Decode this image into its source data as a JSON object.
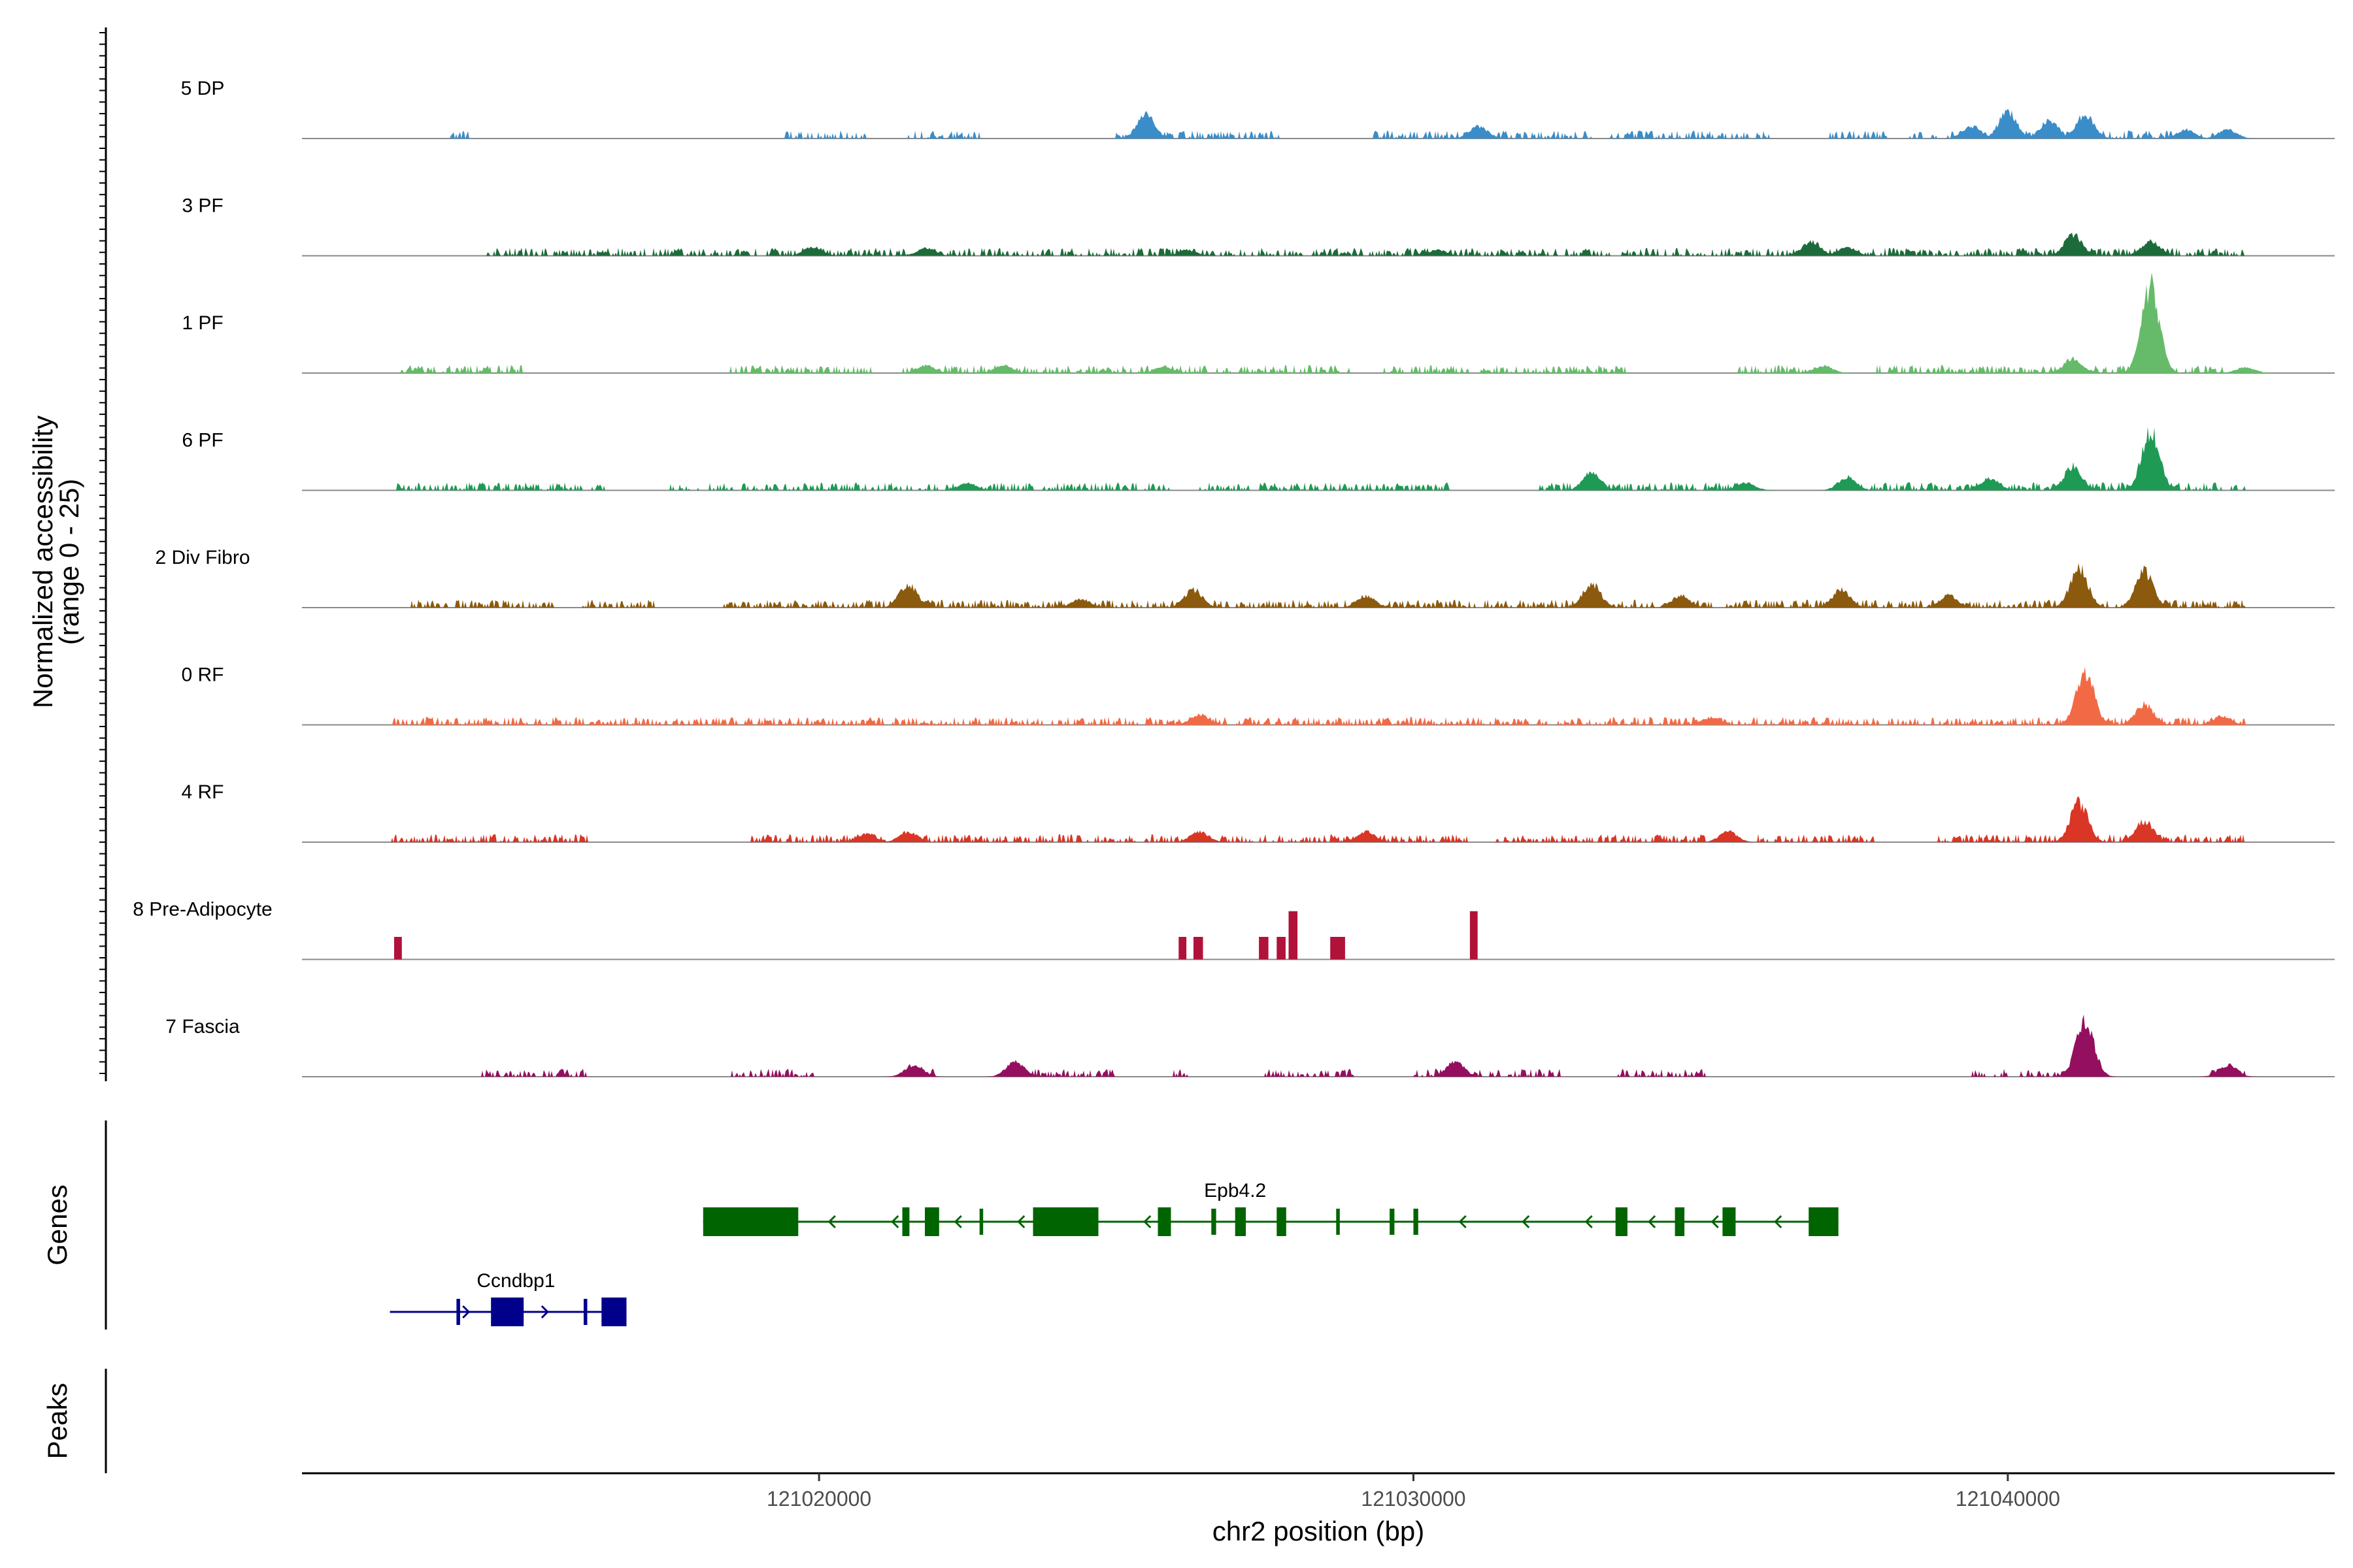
{
  "chart_data": {
    "type": "area",
    "title": "",
    "xlabel": "chr2 position (bp)",
    "ylabel": "Normalized accessibility\n(range 0 - 25)",
    "ylabel_lines": [
      "Normalized accessibility",
      "(range 0 - 25)"
    ],
    "xlim": [
      121011300,
      121045500
    ],
    "ylim": [
      0,
      25
    ],
    "x_ticks": [
      121020000,
      121030000,
      121040000
    ],
    "x_tick_labels": [
      "121020000",
      "121030000",
      "121040000"
    ],
    "tracks": [
      {
        "name": "5 DP",
        "color": "#3a8dc8",
        "segments": [
          [
            121013800,
            121014200
          ],
          [
            121019400,
            121020800
          ],
          [
            121021500,
            121022700
          ],
          [
            121025000,
            121027800
          ],
          [
            121029300,
            121033000
          ],
          [
            121033300,
            121036000
          ],
          [
            121037000,
            121038000
          ],
          [
            121038300,
            121044000
          ]
        ],
        "peaks": [
          [
            121025500,
            16
          ],
          [
            121031100,
            8
          ],
          [
            121039400,
            8
          ],
          [
            121040000,
            18
          ],
          [
            121040700,
            12
          ],
          [
            121041300,
            16
          ],
          [
            121043000,
            6
          ],
          [
            121043700,
            6
          ]
        ]
      },
      {
        "name": "3 PF",
        "color": "#1d6b3a",
        "segments": [
          [
            121014400,
            121044000
          ]
        ],
        "peaks": [
          [
            121019900,
            6
          ],
          [
            121021800,
            5
          ],
          [
            121026200,
            4
          ],
          [
            121030400,
            4
          ],
          [
            121036700,
            10
          ],
          [
            121037300,
            6
          ],
          [
            121041100,
            14
          ],
          [
            121042400,
            10
          ]
        ]
      },
      {
        "name": "1 PF",
        "color": "#66bb6a",
        "segments": [
          [
            121012900,
            121015000
          ],
          [
            121018500,
            121020900
          ],
          [
            121021400,
            121029000
          ],
          [
            121029500,
            121033600
          ],
          [
            121035400,
            121036900
          ],
          [
            121037800,
            121044000
          ]
        ],
        "peaks": [
          [
            121021800,
            5
          ],
          [
            121023100,
            5
          ],
          [
            121025800,
            4
          ],
          [
            121036900,
            5
          ],
          [
            121041100,
            10
          ],
          [
            121042400,
            58
          ],
          [
            121044000,
            4
          ]
        ]
      },
      {
        "name": "6 PF",
        "color": "#1e9a54",
        "segments": [
          [
            121012900,
            121016400
          ],
          [
            121017500,
            121025900
          ],
          [
            121026400,
            121030600
          ],
          [
            121032100,
            121035600
          ],
          [
            121037300,
            121044000
          ]
        ],
        "peaks": [
          [
            121022500,
            5
          ],
          [
            121033000,
            12
          ],
          [
            121035600,
            5
          ],
          [
            121037300,
            9
          ],
          [
            121039700,
            8
          ],
          [
            121041100,
            16
          ],
          [
            121042400,
            40
          ]
        ]
      },
      {
        "name": "2 Div Fibro",
        "color": "#8b5a0f",
        "segments": [
          [
            121013100,
            121015600
          ],
          [
            121016000,
            121017300
          ],
          [
            121018400,
            121044000
          ]
        ],
        "peaks": [
          [
            121021500,
            16
          ],
          [
            121024400,
            6
          ],
          [
            121026300,
            12
          ],
          [
            121029200,
            8
          ],
          [
            121033000,
            16
          ],
          [
            121034500,
            8
          ],
          [
            121037200,
            12
          ],
          [
            121039000,
            8
          ],
          [
            121041200,
            26
          ],
          [
            121042300,
            24
          ]
        ]
      },
      {
        "name": "0 RF",
        "color": "#f26a45",
        "segments": [
          [
            121012800,
            121044000
          ]
        ],
        "peaks": [
          [
            121026400,
            7
          ],
          [
            121035000,
            5
          ],
          [
            121041300,
            36
          ],
          [
            121042300,
            14
          ],
          [
            121043600,
            6
          ]
        ]
      },
      {
        "name": "4 RF",
        "color": "#d93626",
        "segments": [
          [
            121012800,
            121016100
          ],
          [
            121018800,
            121030900
          ],
          [
            121031400,
            121034900
          ],
          [
            121035800,
            121037800
          ],
          [
            121038800,
            121044000
          ]
        ],
        "peaks": [
          [
            121020800,
            6
          ],
          [
            121021500,
            7
          ],
          [
            121026400,
            7
          ],
          [
            121029200,
            7
          ],
          [
            121035300,
            7
          ],
          [
            121041200,
            26
          ],
          [
            121042300,
            14
          ]
        ]
      },
      {
        "name": "8 Pre-Adipocyte",
        "color": "#b0123a",
        "segments": [],
        "peaks": [],
        "bars": [
          [
            121012850,
            121012980,
            14
          ],
          [
            121026050,
            121026180,
            14
          ],
          [
            121026300,
            121026460,
            14
          ],
          [
            121027400,
            121027560,
            14
          ],
          [
            121027700,
            121027850,
            14
          ],
          [
            121027900,
            121028050,
            30
          ],
          [
            121028600,
            121028850,
            14
          ],
          [
            121030950,
            121031080,
            30
          ]
        ]
      },
      {
        "name": "7 Fascia",
        "color": "#940f5f",
        "segments": [
          [
            121014300,
            121016100
          ],
          [
            121018500,
            121019900
          ],
          [
            121021500,
            121022000
          ],
          [
            121023000,
            121025000
          ],
          [
            121025900,
            121026200
          ],
          [
            121027500,
            121029000
          ],
          [
            121030000,
            121032500
          ],
          [
            121033300,
            121035000
          ],
          [
            121039400,
            121040000
          ],
          [
            121040200,
            121041500
          ],
          [
            121043400,
            121044000
          ]
        ],
        "peaks": [
          [
            121021600,
            8
          ],
          [
            121023300,
            10
          ],
          [
            121030700,
            10
          ],
          [
            121041300,
            38
          ],
          [
            121043700,
            8
          ]
        ]
      }
    ],
    "genes_label": "Genes",
    "peaks_label": "Peaks",
    "genes": [
      {
        "name": "Epb4.2",
        "color": "#006400",
        "strand": "-",
        "start": 121018050,
        "end": 121037150,
        "exons": [
          [
            121018050,
            121019650
          ],
          [
            121021400,
            121021520
          ],
          [
            121021780,
            121022020
          ],
          [
            121022700,
            121022760
          ],
          [
            121023600,
            121024700
          ],
          [
            121025700,
            121025920
          ],
          [
            121026600,
            121026680
          ],
          [
            121027000,
            121027180
          ],
          [
            121027700,
            121027860
          ],
          [
            121028700,
            121028760
          ],
          [
            121029600,
            121029680
          ],
          [
            121030000,
            121030080
          ],
          [
            121033400,
            121033600
          ],
          [
            121034400,
            121034560
          ],
          [
            121035200,
            121035420
          ],
          [
            121036650,
            121037150
          ]
        ]
      },
      {
        "name": "Ccndbp1",
        "color": "#00008b",
        "strand": "+",
        "start": 121012780,
        "end": 121016760,
        "exons": [
          [
            121013900,
            121013960
          ],
          [
            121014480,
            121015030
          ],
          [
            121016040,
            121016100
          ],
          [
            121016340,
            121016760
          ]
        ]
      }
    ],
    "legend": "none",
    "grid": false
  }
}
